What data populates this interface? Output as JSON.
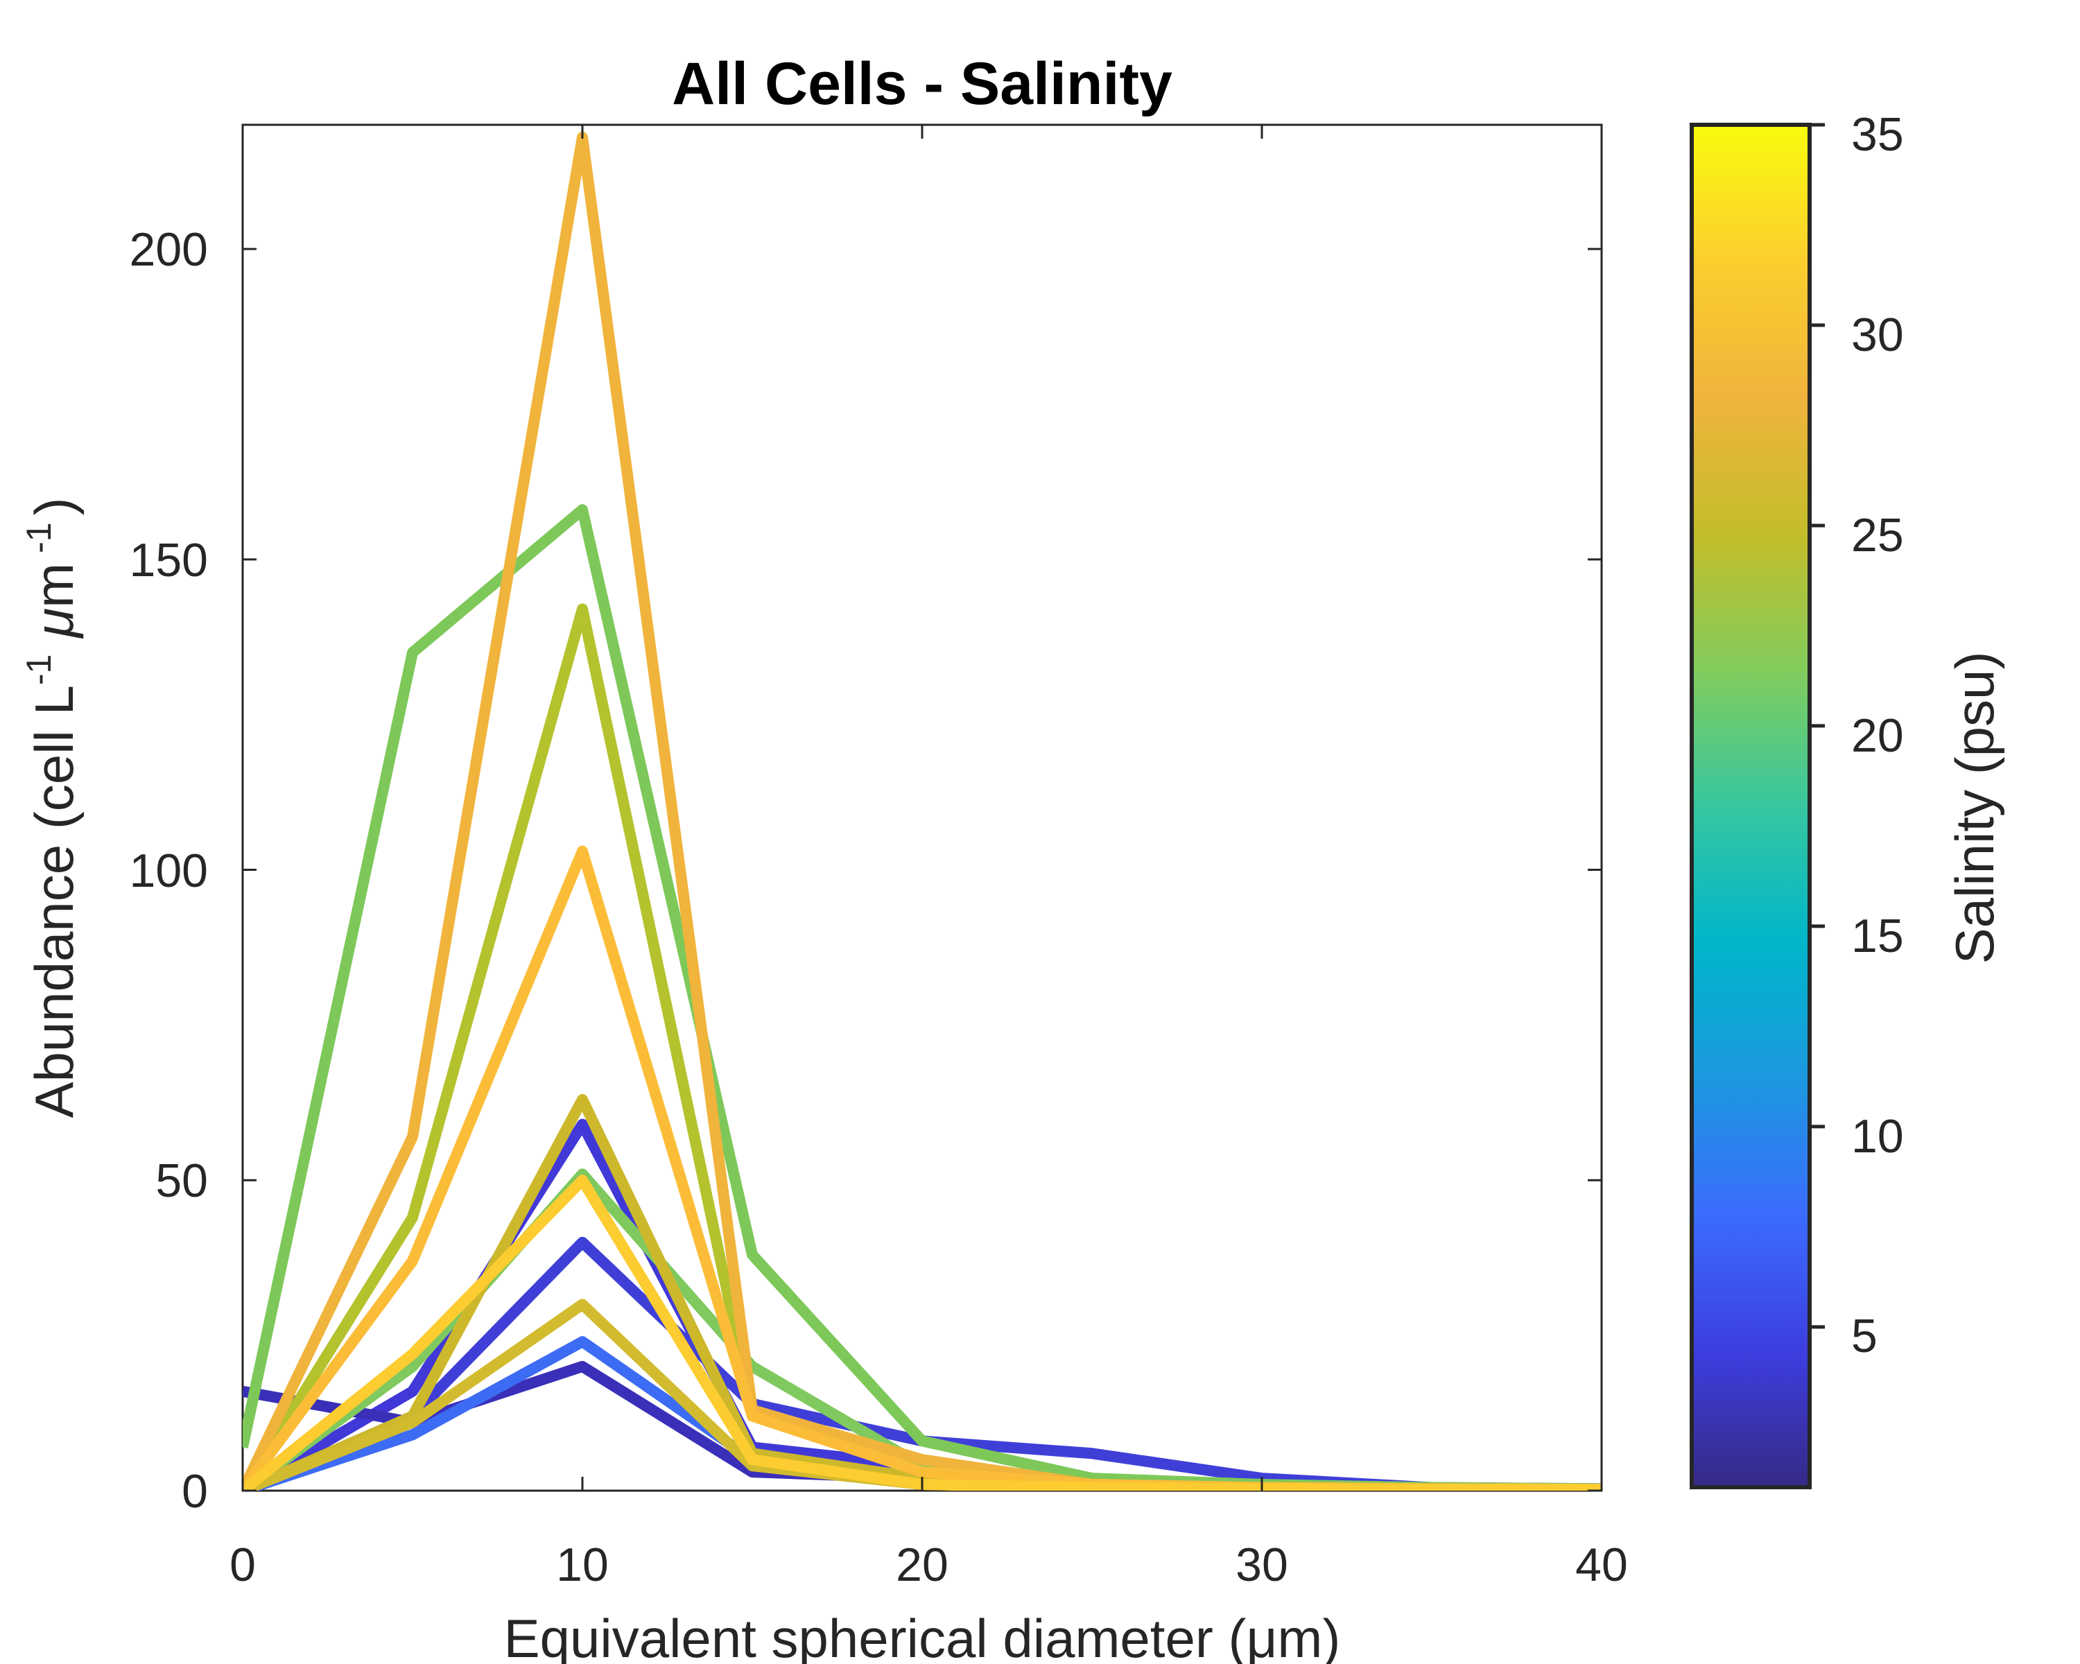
{
  "chart_data": {
    "type": "line",
    "title": "All Cells - Salinity",
    "xlabel": "Equivalent spherical diameter (μm)",
    "ylabel": {
      "prefix": "Abundance (cell L",
      "sup1": "-1",
      "mu": "μ",
      "unit": "m",
      "sup2": "-1",
      "suffix": ")"
    },
    "xlim": [
      0,
      40
    ],
    "ylim": [
      0,
      220
    ],
    "xticks": [
      "0",
      "10",
      "20",
      "30",
      "40"
    ],
    "yticks": [
      "0",
      "50",
      "100",
      "150",
      "200"
    ],
    "x": [
      0,
      5,
      10,
      15,
      20,
      25,
      30,
      35,
      40
    ],
    "colorbar": {
      "label": "Salinity (psu)",
      "range": [
        1,
        35
      ],
      "ticks": [
        "5",
        "10",
        "15",
        "20",
        "25",
        "30",
        "35"
      ],
      "colormap": [
        "#352a87",
        "#3d3ee0",
        "#3b6cfc",
        "#1c98e0",
        "#00b6c9",
        "#37c79f",
        "#82cc5c",
        "#c4bd2a",
        "#f0b43c",
        "#fcce2e",
        "#f9fb0e"
      ]
    },
    "series": [
      {
        "salinity": 3,
        "color": "#4138d8",
        "values": [
          0,
          16,
          59,
          7,
          4,
          1,
          0.5,
          0.3,
          0.2
        ]
      },
      {
        "salinity": 2,
        "color": "#3a2fb8",
        "values": [
          16,
          11,
          20,
          3,
          2,
          1,
          0.5,
          0.3,
          0.2
        ]
      },
      {
        "salinity": 4,
        "color": "#3f3fd8",
        "values": [
          0,
          12,
          40,
          14,
          8,
          6,
          2,
          0.5,
          0.3
        ]
      },
      {
        "salinity": 8,
        "color": "#3d6cf4",
        "values": [
          0,
          9,
          24,
          5,
          2,
          1,
          0.5,
          0.3,
          0.2
        ]
      },
      {
        "salinity": 23,
        "color": "#7ec85a",
        "values": [
          7,
          135,
          158,
          38,
          8,
          2,
          1,
          0.5,
          0.3
        ]
      },
      {
        "salinity": 22,
        "color": "#7fc95e",
        "values": [
          0,
          20,
          51,
          20,
          4,
          1,
          0.5,
          0.3,
          0.2
        ]
      },
      {
        "salinity": 25,
        "color": "#b4c22e",
        "values": [
          0,
          44,
          142,
          13,
          3,
          1,
          0.5,
          0.3,
          0.2
        ]
      },
      {
        "salinity": 27,
        "color": "#cdb82c",
        "values": [
          0,
          12,
          63,
          6,
          2,
          1,
          0.5,
          0.3,
          0.2
        ]
      },
      {
        "salinity": 27,
        "color": "#d2bb2e",
        "values": [
          0,
          11,
          30,
          4,
          1,
          0.5,
          0.3,
          0.2,
          0.2
        ]
      },
      {
        "salinity": 29,
        "color": "#f0b43c",
        "values": [
          0,
          57,
          218,
          13,
          5,
          1,
          0.5,
          0.3,
          0.2
        ]
      },
      {
        "salinity": 30,
        "color": "#fbbd38",
        "values": [
          0,
          37,
          103,
          12,
          3,
          1,
          0.5,
          0.3,
          0.2
        ]
      },
      {
        "salinity": 31,
        "color": "#fccc30",
        "values": [
          0,
          22,
          50,
          5,
          1,
          0.5,
          0.3,
          0.2,
          0.2
        ]
      }
    ]
  }
}
